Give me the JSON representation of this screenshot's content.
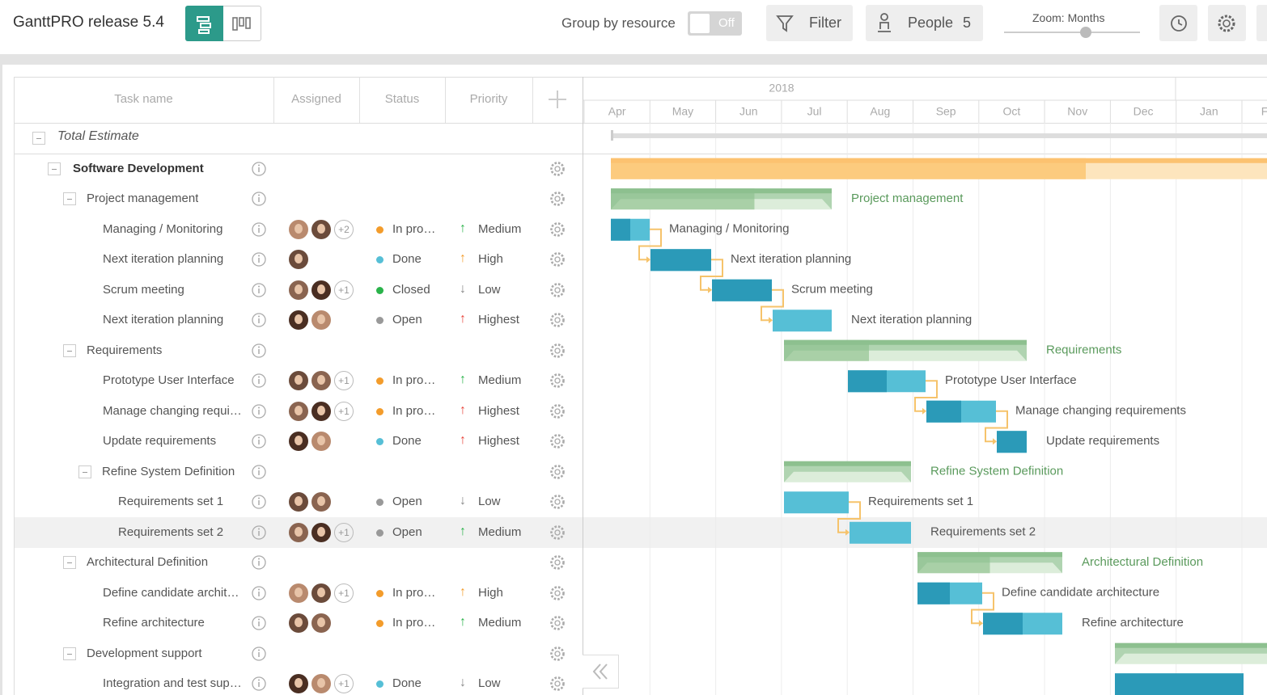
{
  "header": {
    "title": "GanttPRO release 5.4",
    "group_by": "Group by resource",
    "toggle": "Off",
    "filter": "Filter",
    "people": "People",
    "people_count": 5,
    "zoom": "Zoom: Months"
  },
  "grid": {
    "columns": [
      "Task name",
      "Assigned",
      "Status",
      "Priority"
    ],
    "total": "Total Estimate",
    "rows": [
      {
        "name": "Software Development",
        "level": 0,
        "kind": "group"
      },
      {
        "name": "Project management",
        "level": 1,
        "kind": "group"
      },
      {
        "name": "Managing / Monitoring",
        "level": 2,
        "kind": "task",
        "extra": "+2",
        "status": "In pro…",
        "status_color": "#f39c2b",
        "priority": "Medium",
        "priority_icon": "↑",
        "priority_color": "#2ab34a"
      },
      {
        "name": "Next iteration planning",
        "level": 2,
        "kind": "task",
        "status": "Done",
        "status_color": "#56bfd6",
        "priority": "High",
        "priority_icon": "↑",
        "priority_color": "#f39c2b"
      },
      {
        "name": "Scrum meeting",
        "level": 2,
        "kind": "task",
        "extra": "+1",
        "status": "Closed",
        "status_color": "#2ab34a",
        "priority": "Low",
        "priority_icon": "↓",
        "priority_color": "#888888"
      },
      {
        "name": "Next iteration planning",
        "level": 2,
        "kind": "task",
        "status": "Open",
        "status_color": "#999999",
        "priority": "Highest",
        "priority_icon": "↑",
        "priority_color": "#e8453c"
      },
      {
        "name": "Requirements",
        "level": 1,
        "kind": "group"
      },
      {
        "name": "Prototype User Interface",
        "level": 2,
        "kind": "task",
        "extra": "+1",
        "status": "In pro…",
        "status_color": "#f39c2b",
        "priority": "Medium",
        "priority_icon": "↑",
        "priority_color": "#2ab34a"
      },
      {
        "name": "Manage changing requirements",
        "level": 2,
        "kind": "task",
        "extra": "+1",
        "status": "In pro…",
        "status_color": "#f39c2b",
        "priority": "Highest",
        "priority_icon": "↑",
        "priority_color": "#e8453c"
      },
      {
        "name": "Update requirements",
        "level": 2,
        "kind": "task",
        "status": "Done",
        "status_color": "#56bfd6",
        "priority": "Highest",
        "priority_icon": "↑",
        "priority_color": "#e8453c"
      },
      {
        "name": "Refine System Definition",
        "level": 2,
        "kind": "group"
      },
      {
        "name": "Requirements set 1",
        "level": 3,
        "kind": "task",
        "status": "Open",
        "status_color": "#999999",
        "priority": "Low",
        "priority_icon": "↓",
        "priority_color": "#888888"
      },
      {
        "name": "Requirements set 2",
        "level": 3,
        "kind": "task",
        "extra": "+1",
        "status": "Open",
        "status_color": "#999999",
        "priority": "Medium",
        "priority_icon": "↑",
        "priority_color": "#2ab34a",
        "selected": true
      },
      {
        "name": "Architectural Definition",
        "level": 1,
        "kind": "group"
      },
      {
        "name": "Define candidate architecture",
        "level": 2,
        "kind": "task",
        "extra": "+1",
        "status": "In pro…",
        "status_color": "#f39c2b",
        "priority": "High",
        "priority_icon": "↑",
        "priority_color": "#f39c2b"
      },
      {
        "name": "Refine architecture",
        "level": 2,
        "kind": "task",
        "status": "In pro…",
        "status_color": "#f39c2b",
        "priority": "Medium",
        "priority_icon": "↑",
        "priority_color": "#2ab34a"
      },
      {
        "name": "Development support",
        "level": 1,
        "kind": "group"
      },
      {
        "name": "Integration and test support",
        "level": 2,
        "kind": "task",
        "extra": "+1",
        "status": "Done",
        "status_color": "#56bfd6",
        "priority": "Low",
        "priority_icon": "↓",
        "priority_color": "#888888"
      }
    ]
  },
  "timeline": {
    "year": "2018",
    "months": [
      "Apr",
      "May",
      "Jun",
      "Jul",
      "Aug",
      "Sep",
      "Oct",
      "Nov",
      "Dec",
      "Jan",
      "F"
    ]
  }
}
